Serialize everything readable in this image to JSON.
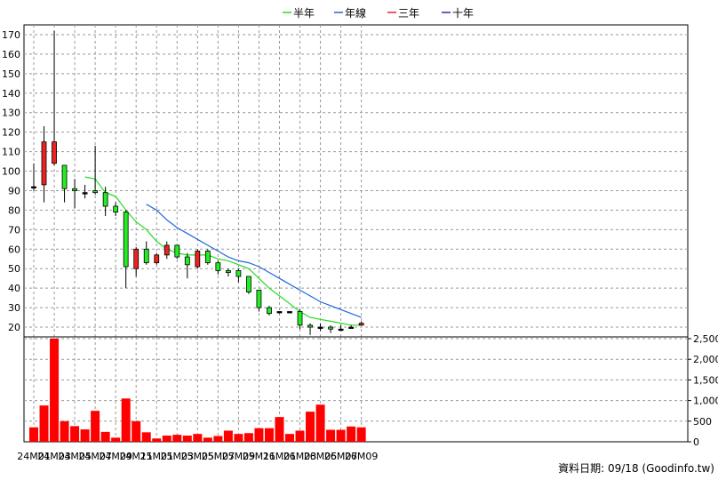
{
  "chart_data": {
    "type": "candlestick",
    "legend": [
      {
        "label": "半年",
        "color": "#22dd22"
      },
      {
        "label": "年線",
        "color": "#2266dd"
      },
      {
        "label": "三年",
        "color": "#dd2244"
      },
      {
        "label": "十年",
        "color": "#4422aa"
      }
    ],
    "x_ticks": [
      "24M01",
      "24M03",
      "24M05",
      "24M07",
      "24M09",
      "24M11",
      "25M01",
      "25M03",
      "25M05",
      "25M07",
      "25M09",
      "25M11",
      "26M01",
      "26M03",
      "26M05",
      "26M07",
      "26M09"
    ],
    "price_axis": {
      "ticks": [
        20,
        30,
        40,
        50,
        60,
        70,
        80,
        90,
        100,
        110,
        120,
        130,
        140,
        150,
        160,
        170
      ],
      "range": [
        15,
        175
      ]
    },
    "volume_axis": {
      "ticks": [
        "0",
        "500",
        "1,000",
        "1,500",
        "2,000",
        "2,500"
      ],
      "range": [
        0,
        2500
      ]
    },
    "candles": [
      {
        "m": "24M01",
        "o": 92,
        "h": 104,
        "l": 90,
        "c": 92
      },
      {
        "m": "24M02",
        "o": 93,
        "h": 123,
        "l": 84,
        "c": 115
      },
      {
        "m": "24M03",
        "o": 104,
        "h": 172,
        "l": 103,
        "c": 115
      },
      {
        "m": "24M04",
        "o": 103,
        "h": 103,
        "l": 84,
        "c": 91
      },
      {
        "m": "24M05",
        "o": 91,
        "h": 96,
        "l": 81,
        "c": 90
      },
      {
        "m": "24M06",
        "o": 89,
        "h": 93,
        "l": 86,
        "c": 89
      },
      {
        "m": "24M07",
        "o": 90,
        "h": 113,
        "l": 88,
        "c": 89
      },
      {
        "m": "24M08",
        "o": 89,
        "h": 92,
        "l": 77,
        "c": 82
      },
      {
        "m": "24M09",
        "o": 82,
        "h": 84,
        "l": 77,
        "c": 79
      },
      {
        "m": "24M10",
        "o": 79,
        "h": 80,
        "l": 40,
        "c": 51
      },
      {
        "m": "24M11",
        "o": 50,
        "h": 61,
        "l": 46,
        "c": 60
      },
      {
        "m": "24M12",
        "o": 60,
        "h": 64,
        "l": 52,
        "c": 53
      },
      {
        "m": "25M01",
        "o": 53,
        "h": 58,
        "l": 52,
        "c": 57
      },
      {
        "m": "25M02",
        "o": 57,
        "h": 64,
        "l": 55,
        "c": 62
      },
      {
        "m": "25M03",
        "o": 62,
        "h": 62,
        "l": 55,
        "c": 56
      },
      {
        "m": "25M04",
        "o": 56,
        "h": 58,
        "l": 45,
        "c": 52
      },
      {
        "m": "25M05",
        "o": 51,
        "h": 60,
        "l": 50,
        "c": 59
      },
      {
        "m": "25M06",
        "o": 59,
        "h": 60,
        "l": 52,
        "c": 53
      },
      {
        "m": "25M07",
        "o": 53,
        "h": 54,
        "l": 47,
        "c": 49
      },
      {
        "m": "25M08",
        "o": 49,
        "h": 50,
        "l": 46,
        "c": 48
      },
      {
        "m": "25M09",
        "o": 49,
        "h": 50,
        "l": 43,
        "c": 46
      },
      {
        "m": "25M10",
        "o": 46,
        "h": 46,
        "l": 37,
        "c": 38
      },
      {
        "m": "25M11",
        "o": 39,
        "h": 39,
        "l": 28,
        "c": 30
      },
      {
        "m": "25M12",
        "o": 30,
        "h": 31,
        "l": 26,
        "c": 27
      },
      {
        "m": "26M01",
        "o": 28,
        "h": 28,
        "l": 27,
        "c": 28
      },
      {
        "m": "26M02",
        "o": 28,
        "h": 28,
        "l": 27,
        "c": 28
      },
      {
        "m": "26M03",
        "o": 28,
        "h": 29,
        "l": 19,
        "c": 21
      },
      {
        "m": "26M04",
        "o": 21,
        "h": 22,
        "l": 16,
        "c": 20
      },
      {
        "m": "26M05",
        "o": 20,
        "h": 22,
        "l": 18,
        "c": 20
      },
      {
        "m": "26M06",
        "o": 20,
        "h": 21,
        "l": 17,
        "c": 19
      },
      {
        "m": "26M07",
        "o": 19,
        "h": 21,
        "l": 18,
        "c": 19
      },
      {
        "m": "26M08",
        "o": 20,
        "h": 21,
        "l": 20,
        "c": 20
      },
      {
        "m": "26M09",
        "o": 21,
        "h": 23,
        "l": 21,
        "c": 22
      }
    ],
    "volume": [
      350,
      880,
      2500,
      500,
      380,
      300,
      750,
      240,
      100,
      1050,
      500,
      230,
      80,
      150,
      170,
      150,
      190,
      100,
      140,
      270,
      190,
      210,
      330,
      330,
      600,
      190,
      270,
      730,
      900,
      290,
      290,
      370,
      350
    ],
    "ma_half_year": [
      null,
      null,
      null,
      null,
      null,
      97,
      96,
      89,
      87,
      80,
      74,
      70,
      64,
      60,
      58,
      57,
      57,
      57,
      55,
      54,
      52,
      50,
      45,
      40,
      36,
      32,
      28,
      25,
      24,
      23,
      22,
      21,
      21
    ],
    "ma_year": [
      null,
      null,
      null,
      null,
      null,
      null,
      null,
      null,
      null,
      null,
      null,
      83,
      80,
      75,
      71,
      68,
      65,
      62,
      59,
      56,
      54,
      53,
      51,
      48,
      45,
      42,
      39,
      36,
      33,
      31,
      29,
      27,
      25
    ]
  },
  "footer": {
    "text": "資料日期: 09/18 (Goodinfo.tw)"
  }
}
